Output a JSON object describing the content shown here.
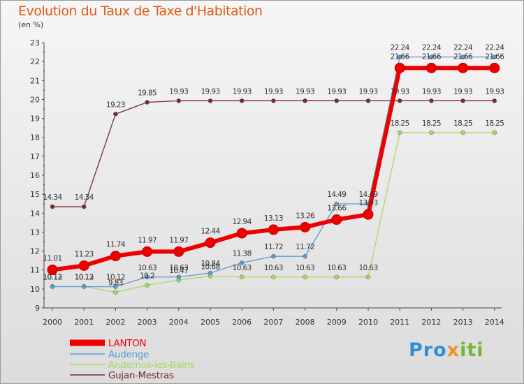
{
  "header": {
    "title": "Evolution du Taux de Taxe d'Habitation",
    "unit": "(en %)"
  },
  "logo": {
    "part1": "Pro",
    "part2": "x",
    "part3": "iti"
  },
  "colors": {
    "title": "#e05a14",
    "lanton": "#ee0000",
    "audenge": "#5b9bd5",
    "andernos": "#a6d96a",
    "gujan": "#7a2a2a"
  },
  "chart_data": {
    "type": "line",
    "title": "Evolution du Taux de Taxe d'Habitation",
    "ylabel": "(en %)",
    "xlabel": "",
    "x": [
      "2000",
      "2001",
      "2002",
      "2003",
      "2004",
      "2005",
      "2006",
      "2007",
      "2008",
      "2009",
      "2010",
      "2011",
      "2012",
      "2013",
      "2014"
    ],
    "ylim": [
      9,
      23
    ],
    "yticks": [
      9,
      10,
      11,
      12,
      13,
      14,
      15,
      16,
      17,
      18,
      19,
      20,
      21,
      22,
      23
    ],
    "grid": false,
    "legend_position": "bottom-left",
    "series": [
      {
        "name": "LANTON",
        "color": "#ee0000",
        "values": [
          11.01,
          11.23,
          11.74,
          11.97,
          11.97,
          12.44,
          12.94,
          13.13,
          13.26,
          13.66,
          13.93,
          21.66,
          21.66,
          21.66,
          21.66
        ]
      },
      {
        "name": "Audenge",
        "color": "#5b9bd5",
        "values": [
          10.12,
          10.12,
          10.12,
          10.63,
          10.63,
          10.84,
          11.38,
          11.72,
          11.72,
          14.49,
          14.49,
          22.24,
          22.24,
          22.24,
          22.24
        ]
      },
      {
        "name": "Andernos-les-Bains",
        "color": "#a6d96a",
        "values": [
          10.13,
          10.13,
          9.83,
          10.2,
          10.47,
          10.68,
          10.63,
          10.63,
          10.63,
          10.63,
          10.63,
          18.25,
          18.25,
          18.25,
          18.25
        ]
      },
      {
        "name": "Gujan-Mestras",
        "color": "#7a2a2a",
        "values": [
          14.34,
          14.34,
          19.23,
          19.85,
          19.93,
          19.93,
          19.93,
          19.93,
          19.93,
          19.93,
          19.93,
          19.93,
          19.93,
          19.93,
          19.93
        ]
      }
    ]
  }
}
